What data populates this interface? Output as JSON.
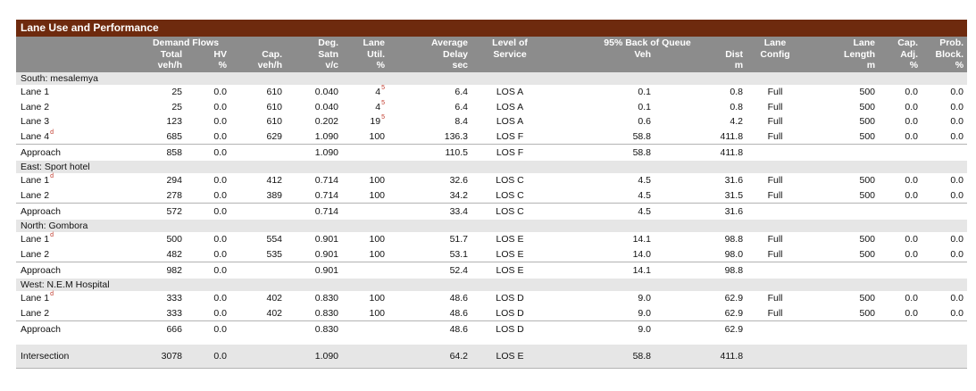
{
  "title": "Lane Use and Performance",
  "colors": {
    "title_bg": "#6e2a0e",
    "header_bg": "#8c8c8c",
    "group_bg": "#e6e6e6",
    "note": "#c0392b"
  },
  "header": {
    "row1": {
      "demand_flows": "Demand Flows",
      "deg": "Deg.",
      "lane": "Lane",
      "average": "Average",
      "level_of": "Level of",
      "back_of_queue": "95% Back of Queue",
      "lane2": "Lane",
      "lane3": "Lane",
      "cap": "Cap.",
      "prob": "Prob."
    },
    "row2": {
      "total": "Total",
      "hv": "HV",
      "cap": "Cap.",
      "satn": "Satn",
      "util": "Util.",
      "delay": "Delay",
      "service": "Service",
      "veh": "Veh",
      "dist": "Dist",
      "config": "Config",
      "length": "Length",
      "adj": "Adj.",
      "block": "Block."
    },
    "row3": {
      "total_unit": "veh/h",
      "hv_unit": "%",
      "cap_unit": "veh/h",
      "satn_unit": "v/c",
      "util_unit": "%",
      "delay_unit": "sec",
      "dist_unit": "m",
      "length_unit": "m",
      "adj_unit": "%",
      "block_unit": "%"
    }
  },
  "approaches": [
    {
      "name": "South: mesalemya",
      "lanes": [
        {
          "label": "Lane 1",
          "note": "",
          "total": "25",
          "hv": "0.0",
          "cap": "610",
          "satn": "0.040",
          "util": "4",
          "util_note": "5",
          "delay": "6.4",
          "los": "LOS A",
          "veh": "0.1",
          "dist": "0.8",
          "config": "Full",
          "length": "500",
          "adj": "0.0",
          "block": "0.0"
        },
        {
          "label": "Lane 2",
          "note": "",
          "total": "25",
          "hv": "0.0",
          "cap": "610",
          "satn": "0.040",
          "util": "4",
          "util_note": "5",
          "delay": "6.4",
          "los": "LOS A",
          "veh": "0.1",
          "dist": "0.8",
          "config": "Full",
          "length": "500",
          "adj": "0.0",
          "block": "0.0"
        },
        {
          "label": "Lane 3",
          "note": "",
          "total": "123",
          "hv": "0.0",
          "cap": "610",
          "satn": "0.202",
          "util": "19",
          "util_note": "5",
          "delay": "8.4",
          "los": "LOS A",
          "veh": "0.6",
          "dist": "4.2",
          "config": "Full",
          "length": "500",
          "adj": "0.0",
          "block": "0.0"
        },
        {
          "label": "Lane 4",
          "note": "d",
          "total": "685",
          "hv": "0.0",
          "cap": "629",
          "satn": "1.090",
          "util": "100",
          "util_note": "",
          "delay": "136.3",
          "los": "LOS F",
          "veh": "58.8",
          "dist": "411.8",
          "config": "Full",
          "length": "500",
          "adj": "0.0",
          "block": "0.0"
        }
      ],
      "approach": {
        "label": "Approach",
        "total": "858",
        "hv": "0.0",
        "satn": "1.090",
        "delay": "110.5",
        "los": "LOS F",
        "veh": "58.8",
        "dist": "411.8"
      }
    },
    {
      "name": "East: Sport hotel",
      "lanes": [
        {
          "label": "Lane 1",
          "note": "d",
          "total": "294",
          "hv": "0.0",
          "cap": "412",
          "satn": "0.714",
          "util": "100",
          "util_note": "",
          "delay": "32.6",
          "los": "LOS C",
          "veh": "4.5",
          "dist": "31.6",
          "config": "Full",
          "length": "500",
          "adj": "0.0",
          "block": "0.0"
        },
        {
          "label": "Lane 2",
          "note": "",
          "total": "278",
          "hv": "0.0",
          "cap": "389",
          "satn": "0.714",
          "util": "100",
          "util_note": "",
          "delay": "34.2",
          "los": "LOS C",
          "veh": "4.5",
          "dist": "31.5",
          "config": "Full",
          "length": "500",
          "adj": "0.0",
          "block": "0.0"
        }
      ],
      "approach": {
        "label": "Approach",
        "total": "572",
        "hv": "0.0",
        "satn": "0.714",
        "delay": "33.4",
        "los": "LOS C",
        "veh": "4.5",
        "dist": "31.6"
      }
    },
    {
      "name": "North: Gombora",
      "lanes": [
        {
          "label": "Lane 1",
          "note": "d",
          "total": "500",
          "hv": "0.0",
          "cap": "554",
          "satn": "0.901",
          "util": "100",
          "util_note": "",
          "delay": "51.7",
          "los": "LOS E",
          "veh": "14.1",
          "dist": "98.8",
          "config": "Full",
          "length": "500",
          "adj": "0.0",
          "block": "0.0"
        },
        {
          "label": "Lane 2",
          "note": "",
          "total": "482",
          "hv": "0.0",
          "cap": "535",
          "satn": "0.901",
          "util": "100",
          "util_note": "",
          "delay": "53.1",
          "los": "LOS E",
          "veh": "14.0",
          "dist": "98.0",
          "config": "Full",
          "length": "500",
          "adj": "0.0",
          "block": "0.0"
        }
      ],
      "approach": {
        "label": "Approach",
        "total": "982",
        "hv": "0.0",
        "satn": "0.901",
        "delay": "52.4",
        "los": "LOS E",
        "veh": "14.1",
        "dist": "98.8"
      }
    },
    {
      "name": "West: N.E.M Hospital",
      "lanes": [
        {
          "label": "Lane 1",
          "note": "d",
          "total": "333",
          "hv": "0.0",
          "cap": "402",
          "satn": "0.830",
          "util": "100",
          "util_note": "",
          "delay": "48.6",
          "los": "LOS D",
          "veh": "9.0",
          "dist": "62.9",
          "config": "Full",
          "length": "500",
          "adj": "0.0",
          "block": "0.0"
        },
        {
          "label": "Lane 2",
          "note": "",
          "total": "333",
          "hv": "0.0",
          "cap": "402",
          "satn": "0.830",
          "util": "100",
          "util_note": "",
          "delay": "48.6",
          "los": "LOS D",
          "veh": "9.0",
          "dist": "62.9",
          "config": "Full",
          "length": "500",
          "adj": "0.0",
          "block": "0.0"
        }
      ],
      "approach": {
        "label": "Approach",
        "total": "666",
        "hv": "0.0",
        "satn": "0.830",
        "delay": "48.6",
        "los": "LOS D",
        "veh": "9.0",
        "dist": "62.9"
      }
    }
  ],
  "intersection": {
    "label": "Intersection",
    "total": "3078",
    "hv": "0.0",
    "satn": "1.090",
    "delay": "64.2",
    "los": "LOS E",
    "veh": "58.8",
    "dist": "411.8"
  }
}
